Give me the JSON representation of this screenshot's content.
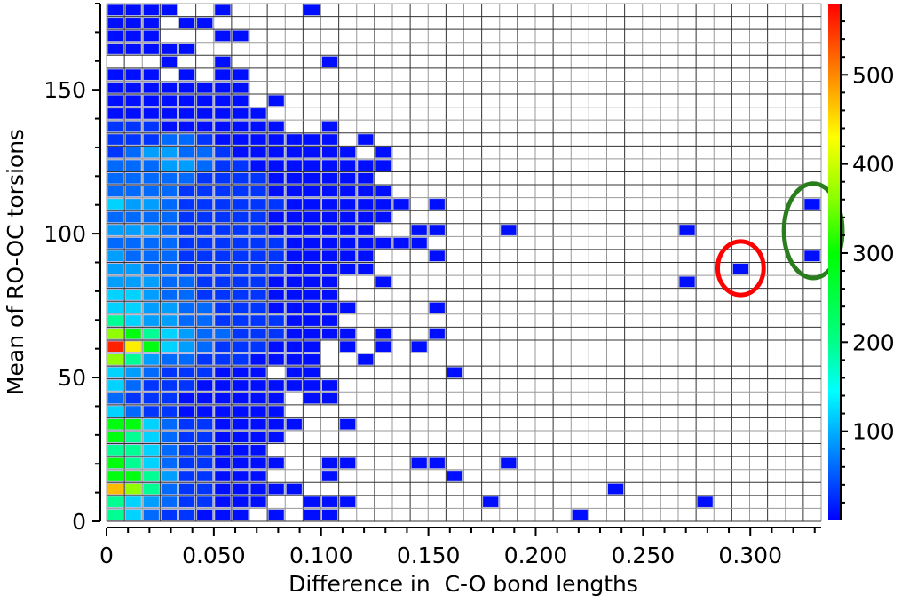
{
  "chart_data": {
    "type": "heatmap",
    "title": "",
    "xlabel": "Difference in  C-O bond lengths",
    "ylabel": "Mean of RO-OC torsions",
    "xlim": [
      0,
      0.333
    ],
    "ylim": [
      0,
      180
    ],
    "x_bins": 40,
    "y_bins": 40,
    "x_ticks": [
      {
        "value": 0,
        "label": "0"
      },
      {
        "value": 0.05,
        "label": "0.050"
      },
      {
        "value": 0.1,
        "label": "0.100"
      },
      {
        "value": 0.15,
        "label": "0.150"
      },
      {
        "value": 0.2,
        "label": "0.200"
      },
      {
        "value": 0.25,
        "label": "0.250"
      },
      {
        "value": 0.3,
        "label": "0.300"
      }
    ],
    "x_minor_step": 0.01,
    "y_ticks": [
      {
        "value": 0,
        "label": "0"
      },
      {
        "value": 50,
        "label": "50"
      },
      {
        "value": 100,
        "label": "100"
      },
      {
        "value": 150,
        "label": "150"
      }
    ],
    "y_minor_step": 10,
    "colorbar": {
      "range": [
        0,
        580
      ],
      "ticks": [
        {
          "value": 100,
          "label": "100"
        },
        {
          "value": 200,
          "label": "200"
        },
        {
          "value": 300,
          "label": "300"
        },
        {
          "value": 400,
          "label": "400"
        },
        {
          "value": 500,
          "label": "500"
        }
      ],
      "minor_step": 20,
      "stops": [
        [
          0,
          "#0000ff"
        ],
        [
          145,
          "#00ffff"
        ],
        [
          200,
          "#00ff88"
        ],
        [
          300,
          "#00ff00"
        ],
        [
          360,
          "#88ff00"
        ],
        [
          430,
          "#ffff00"
        ],
        [
          490,
          "#ff9900"
        ],
        [
          580,
          "#ff0000"
        ]
      ]
    },
    "count_codes": {
      "1": 8,
      "2": 30,
      "3": 60,
      "4": 90,
      "5": 120,
      "6": 195,
      "7": 290,
      "8": 365,
      "9": 440,
      "a": 470,
      "b": 560
    },
    "grid_rows_top_to_bottom": [
      "1111..1....1............................",
      "111.11..................................",
      "111...11................................",
      "11111...................................",
      "...1..1.....1...........................",
      "111.1.11................................",
      "11111111................................",
      "11111111.1..............................",
      "111111111...............................",
      "2221111111..1...........................",
      "2223321111111.1.........................",
      "23443321111111.1........................",
      "3334432211111111........................",
      "333332222111111.........................",
      "3333222221111111........................",
      "54432222221111111.1....................1",
      "3333222221111111........................",
      "444322222111111..11...1.........1.......",
      "333322222211111111......................",
      "433322222211111...1....................1",
      "443322222211111....................1....",
      "4443322221111..1................1.......",
      "5543322221111...........................",
      "55443322211111....1.....................",
      "6544332222111...........................",
      "87654332221111.1..1.....................",
      "b97543222111.1.1.1......................",
      "864332221111..1.........................",
      "543222111.11.......1....................",
      "5322211111111...........................",
      "3222111111.11...........................",
      "5322111111..............................",
      "77532211111..1..........................",
      "7653221111..............................",
      "665322111...............................",
      "7653221111..11...11...1.................",
      "776422111...1......1....................",
      "a8632211111.................1...........",
      "654322111..111.......1...........1......",
      "65322111.1.11.............1............."
    ],
    "annotations": [
      {
        "shape": "ellipse",
        "color": "#ff0000",
        "cx": 0.2955,
        "cy": 88,
        "rx": 0.0107,
        "ry": 9.3
      },
      {
        "shape": "ellipse",
        "color": "#2a7d1c",
        "cx": 0.3293,
        "cy": 101,
        "rx": 0.0136,
        "ry": 16.4
      }
    ]
  }
}
